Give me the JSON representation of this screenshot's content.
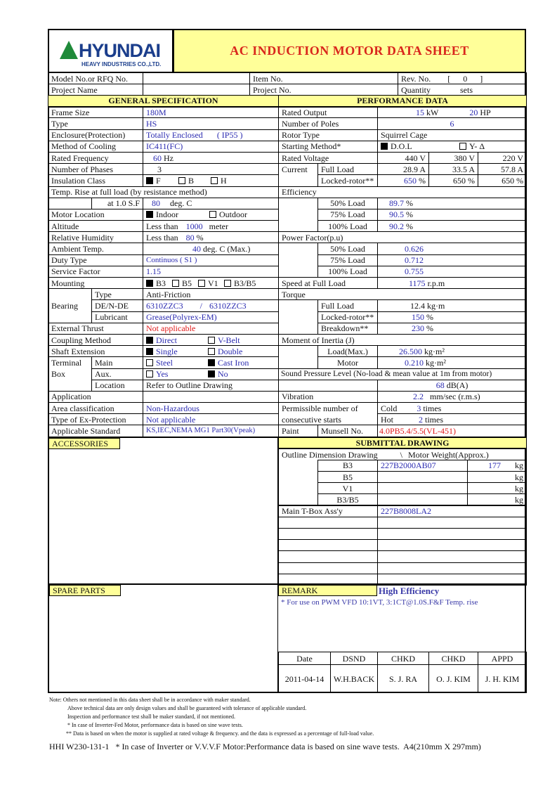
{
  "header": {
    "logo_text": "HYUNDAI",
    "logo_sub": "HEAVY INDUSTRIES CO.,LTD.",
    "title": "AC INDUCTION MOTOR DATA SHEET"
  },
  "info": {
    "model_label": "Model No.or RFQ No.",
    "model_value": "",
    "item_label": "Item No.",
    "item_value": "",
    "rev_label": "Rev. No.",
    "rev_value": "[      0      ]",
    "project_name_label": "Project Name",
    "project_name_value": "",
    "project_no_label": "Project No.",
    "project_no_value": "",
    "quantity_label": "Quantity",
    "quantity_unit": "sets"
  },
  "general": {
    "title": "GENERAL SPECIFICATION",
    "frame_size": {
      "label": "Frame Size",
      "value": "180M"
    },
    "type": {
      "label": "Type",
      "value": "HS"
    },
    "enclosure": {
      "label": "Enclosure(Protection)",
      "value": "Totally Enclosed",
      "ip": "( IP55 )"
    },
    "cooling": {
      "label": "Method of Cooling",
      "value": "IC411(FC)"
    },
    "frequency": {
      "label": "Rated Frequency",
      "value": "60",
      "unit": "Hz"
    },
    "phases": {
      "label": "Number of Phases",
      "value": "3"
    },
    "insulation": {
      "label": "Insulation Class",
      "options": [
        {
          "label": "F",
          "checked": true
        },
        {
          "label": "B",
          "checked": false
        },
        {
          "label": "H",
          "checked": false
        }
      ]
    },
    "temp_rise": {
      "label": "Temp. Rise at full load (by resistance method)",
      "sub_label": "at 1.0 S.F",
      "value": "80",
      "unit": "deg. C"
    },
    "location": {
      "label": "Motor Location",
      "options": [
        {
          "label": "Indoor",
          "checked": true
        },
        {
          "label": "Outdoor",
          "checked": false
        }
      ]
    },
    "altitude": {
      "label": "Altitude",
      "prefix": "Less than",
      "value": "1000",
      "unit": "meter"
    },
    "humidity": {
      "label": "Relative Humidity",
      "prefix": "Less than",
      "value": "80",
      "unit": "%"
    },
    "ambient": {
      "label": "Ambient Temp.",
      "value": "40",
      "unit": "deg. C (Max.)"
    },
    "duty": {
      "label": "Duty Type",
      "value": "Continuos ( S1 )"
    },
    "service_factor": {
      "label": "Service Factor",
      "value": "1.15"
    },
    "mounting": {
      "label": "Mounting",
      "options": [
        {
          "label": "B3",
          "checked": true
        },
        {
          "label": "B5",
          "checked": false
        },
        {
          "label": "V1",
          "checked": false
        },
        {
          "label": "B3/B5",
          "checked": false
        }
      ]
    },
    "bearing": {
      "label": "Bearing",
      "type_label": "Type",
      "type_value": "Anti-Friction",
      "de_label": "DE/N-DE",
      "de_value": "6310ZZC3",
      "sep": "/",
      "nde_value": "6310ZZC3",
      "lub_label": "Lubricant",
      "lub_value": "Grease(Polyrex-EM)"
    },
    "thrust": {
      "label": "External Thrust",
      "value": "Not applicable"
    },
    "coupling": {
      "label": "Coupling Method",
      "options": [
        {
          "label": "Direct",
          "checked": true
        },
        {
          "label": "V-Belt",
          "checked": false
        }
      ]
    },
    "shaft": {
      "label": "Shaft Extension",
      "options": [
        {
          "label": "Single",
          "checked": true
        },
        {
          "label": "Double",
          "checked": false
        }
      ]
    },
    "terminal": {
      "label1": "Terminal",
      "label2": "Box",
      "main_label": "Main",
      "main_options": [
        {
          "label": "Steel",
          "checked": false
        },
        {
          "label": "Cast Iron",
          "checked": true
        }
      ],
      "aux_label": "Aux.",
      "aux_options": [
        {
          "label": "Yes",
          "checked": false
        },
        {
          "label": "No",
          "checked": true
        }
      ],
      "loc_label": "Location",
      "loc_value": "Refer to Outline Drawing"
    },
    "application": {
      "label": "Application",
      "value": ""
    },
    "area": {
      "label": "Area classification",
      "value": "Non-Hazardous"
    },
    "ex": {
      "label": "Type of Ex-Protection",
      "value": "Not applicable"
    },
    "standard": {
      "label": "Applicable Standard",
      "value": "KS,IEC,NEMA MG1 Part30(Vpeak)"
    }
  },
  "performance": {
    "title": "PERFORMANCE DATA",
    "output": {
      "label": "Rated Output",
      "kw": "15",
      "kw_unit": "kW",
      "hp": "20",
      "hp_unit": "HP"
    },
    "poles": {
      "label": "Number of Poles",
      "value": "6"
    },
    "rotor": {
      "label": "Rotor Type",
      "value": "Squirrel Cage"
    },
    "starting": {
      "label": "Starting Method*",
      "options": [
        {
          "label": "D.O.L",
          "checked": true
        },
        {
          "label": "Y- Δ",
          "checked": false
        }
      ]
    },
    "voltage": {
      "label": "Rated Voltage",
      "values": [
        "440",
        "380",
        "220"
      ],
      "unit": "V"
    },
    "current": {
      "label": "Current",
      "full_label": "Full Load",
      "full": [
        "28.9",
        "33.5",
        "57.8"
      ],
      "full_unit": "A",
      "lr_label": "Locked-rotor**",
      "lr": [
        "650",
        "650",
        "650"
      ],
      "lr_unit": "%"
    },
    "efficiency": {
      "label": "Efficiency",
      "rows": [
        {
          "load": "50% Load",
          "value": "89.7"
        },
        {
          "load": "75% Load",
          "value": "90.5"
        },
        {
          "load": "100% Load",
          "value": "90.2"
        }
      ],
      "unit": "%"
    },
    "power_factor": {
      "label": "Power Factor(p.u)",
      "rows": [
        {
          "load": "50% Load",
          "value": "0.626"
        },
        {
          "load": "75% Load",
          "value": "0.712"
        },
        {
          "load": "100% Load",
          "value": "0.755"
        }
      ]
    },
    "speed": {
      "label": "Speed at Full Load",
      "value": "1175",
      "unit": "r.p.m"
    },
    "torque": {
      "label": "Torque",
      "full_label": "Full Load",
      "full": "12.4",
      "full_unit": "kg·m",
      "lr_label": "Locked-rotor**",
      "lr": "150",
      "bd_label": "Breakdown**",
      "bd": "230",
      "pct": "%"
    },
    "inertia": {
      "label": "Moment of Inertia (J)",
      "load_label": "Load(Max.)",
      "load": "26.500",
      "motor_label": "Motor",
      "motor": "0.210",
      "unit": "kg·m²"
    },
    "sound": {
      "label": "Sound Pressure Level (No-load & mean value at 1m from motor)",
      "value": "68",
      "unit": "dB(A)"
    },
    "vibration": {
      "label": "Vibration",
      "value": "2.2",
      "unit": "mm/sec (r.m.s)"
    },
    "starts": {
      "label1": "Permissible number of",
      "label2": "consecutive starts",
      "cold_label": "Cold",
      "cold": "3",
      "hot_label": "Hot",
      "hot": "2",
      "unit": "times"
    },
    "paint": {
      "label": "Paint",
      "sub_label": "Munsell No.",
      "value": "4.0PB5.4/5.5(VL-451)"
    }
  },
  "accessories": {
    "label": "ACCESSORIES"
  },
  "submittal": {
    "title": "SUBMITTAL DRAWING",
    "outline_label": "Outline Dimension Drawing",
    "sep": "\\",
    "weight_label": "Motor Weight(Approx.)",
    "rows": [
      {
        "type": "B3",
        "drawing": "227B2000AB07",
        "weight": "177"
      },
      {
        "type": "B5",
        "drawing": "",
        "weight": ""
      },
      {
        "type": "V1",
        "drawing": "",
        "weight": ""
      },
      {
        "type": "B3/B5",
        "drawing": "",
        "weight": ""
      }
    ],
    "weight_unit": "kg",
    "tbox_label": "Main T-Box Ass'y",
    "tbox_value": "227B8008LA2"
  },
  "spare_parts": {
    "label": "SPARE PARTS"
  },
  "remark": {
    "label": "REMARK",
    "highlight": "High Efficiency",
    "text": "* For use on PWM VFD 10:1VT, 3:1CT@1.0S.F&F Temp. rise"
  },
  "approval": {
    "headers": [
      "Date",
      "DSND",
      "CHKD",
      "CHKD",
      "APPD"
    ],
    "values": [
      "2011-04-14",
      "W.H.BACK",
      "S. J. RA",
      "O. J. KIM",
      "J. H. KIM"
    ]
  },
  "notes": [
    "Note: Others not mentioned in this data sheet shall be in accordance with maker standard.",
    "Above technical data are only design values and shall be guaranteed with tolerance of applicable standard.",
    "Inspection and performance test shall be maker standard,  if not mentioned.",
    "* In case of Inverter-Fed Motor, performance data is based on sine wave tests.",
    "** Data is based on when the motor is supplied at rated voltage & frequency. and the data is expressed as a percentage of full-load value."
  ],
  "footer": {
    "doc_no": "HHI W230-131-1",
    "text": "* In case of Inverter or V.V.V.F Motor:Performance data is based on sine wave tests.",
    "paper": "A4(210mm X 297mm)"
  }
}
